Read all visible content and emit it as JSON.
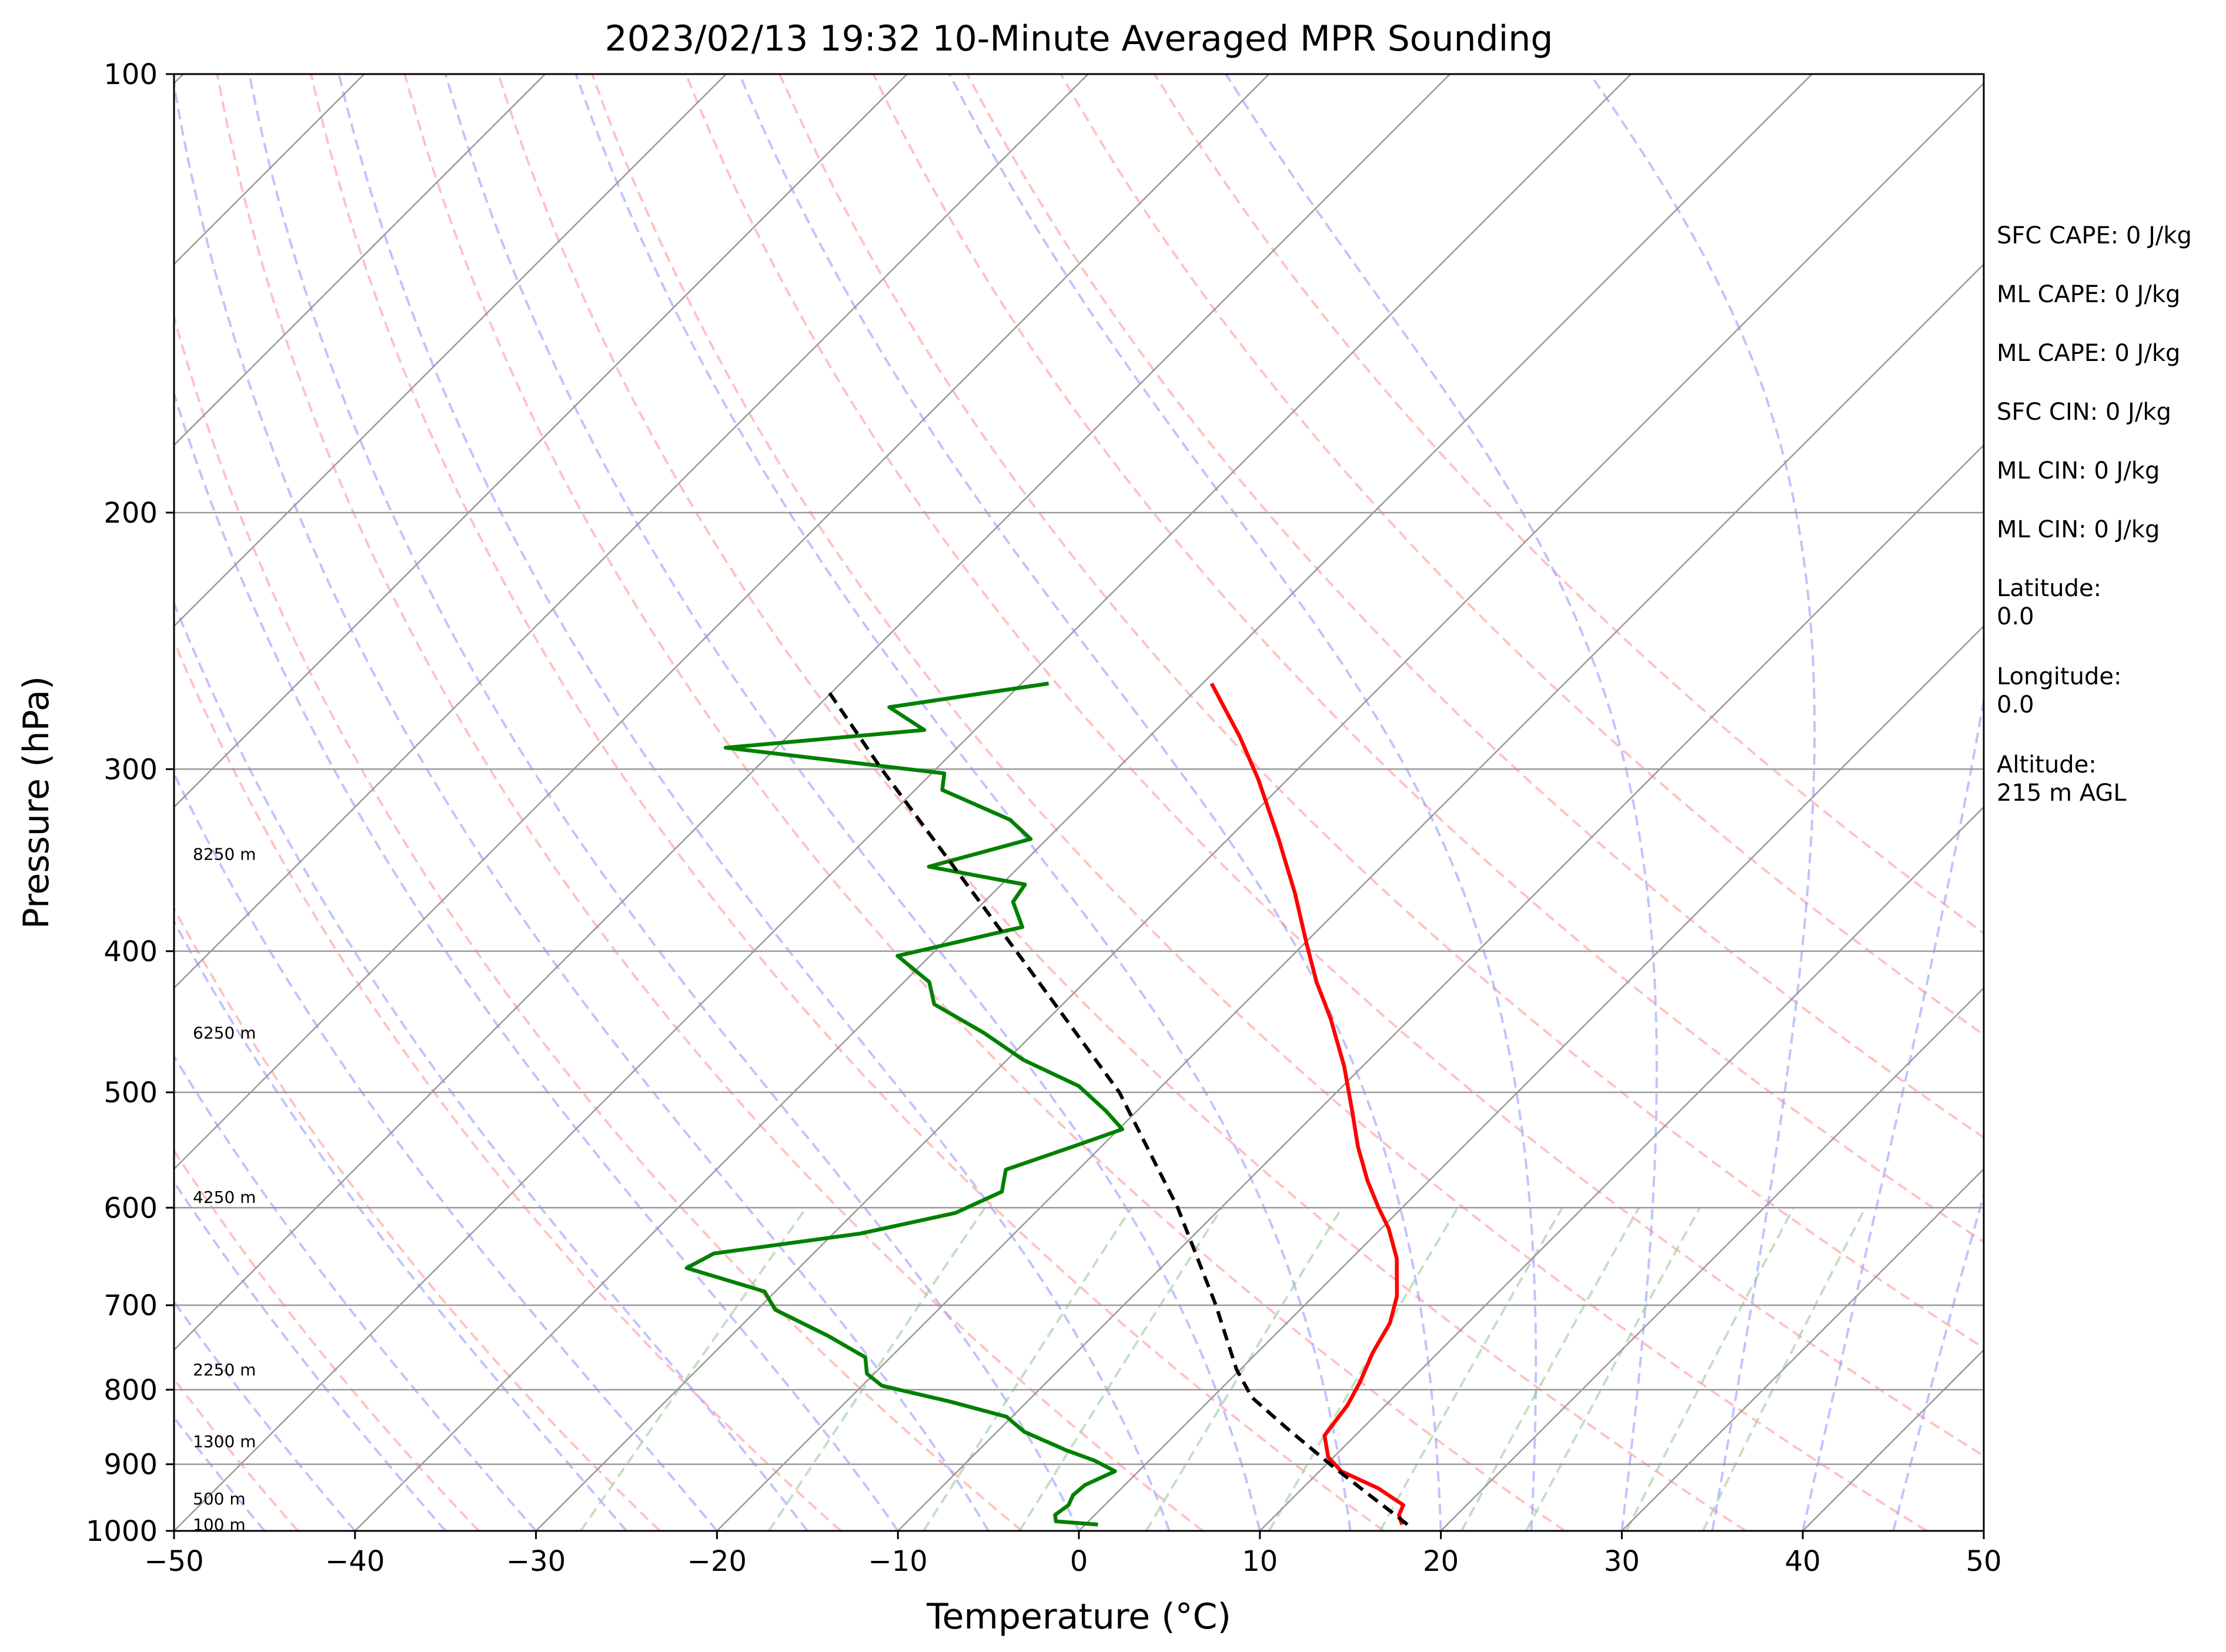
{
  "chart_data": {
    "type": "skew-t",
    "title": "2023/02/13 19:32 10-Minute Averaged MPR Sounding",
    "xlabel": "Temperature (°C)",
    "ylabel": "Pressure (hPa)",
    "xlim": [
      -50,
      50
    ],
    "ylim": [
      1000,
      100
    ],
    "y_scale": "log",
    "skew": "45°",
    "grid": true,
    "x_ticks": [
      -50,
      -40,
      -30,
      -20,
      -10,
      0,
      10,
      20,
      30,
      40,
      50
    ],
    "x_tick_labels": [
      "−50",
      "−40",
      "−30",
      "−20",
      "−10",
      "0",
      "10",
      "20",
      "30",
      "40",
      "50"
    ],
    "y_ticks": [
      1000,
      900,
      800,
      700,
      600,
      500,
      400,
      300,
      200,
      100
    ],
    "y_tick_labels": [
      "1000",
      "900",
      "800",
      "700",
      "600",
      "500",
      "400",
      "300",
      "200",
      "100"
    ],
    "height_labels": [
      {
        "text": "100 m",
        "pressure": 990
      },
      {
        "text": "500 m",
        "pressure": 950
      },
      {
        "text": "1300 m",
        "pressure": 868
      },
      {
        "text": "2250 m",
        "pressure": 775
      },
      {
        "text": "4250 m",
        "pressure": 590
      },
      {
        "text": "6250 m",
        "pressure": 455
      },
      {
        "text": "8250 m",
        "pressure": 343
      }
    ],
    "side_text": [
      "SFC CAPE: 0 J/kg",
      "ML CAPE: 0 J/kg",
      "ML CAPE: 0 J/kg",
      "SFC CIN: 0 J/kg",
      "ML CIN: 0 J/kg",
      "ML CIN: 0 J/kg",
      "Latitude:\n0.0",
      "Longitude:\n0.0",
      "Altitude:\n215 m AGL"
    ],
    "series": [
      {
        "role": "temperature",
        "color": "#ff0000",
        "points": [
          {
            "p": 990,
            "t": 17.5
          },
          {
            "p": 975,
            "t": 16.8
          },
          {
            "p": 960,
            "t": 16.5
          },
          {
            "p": 935,
            "t": 14.2
          },
          {
            "p": 910,
            "t": 11.2
          },
          {
            "p": 890,
            "t": 9.7
          },
          {
            "p": 860,
            "t": 8.3
          },
          {
            "p": 820,
            "t": 7.9
          },
          {
            "p": 790,
            "t": 7.3
          },
          {
            "p": 755,
            "t": 6.4
          },
          {
            "p": 720,
            "t": 5.7
          },
          {
            "p": 690,
            "t": 4.6
          },
          {
            "p": 650,
            "t": 2.5
          },
          {
            "p": 620,
            "t": 0.4
          },
          {
            "p": 600,
            "t": -1.3
          },
          {
            "p": 575,
            "t": -3.4
          },
          {
            "p": 545,
            "t": -5.8
          },
          {
            "p": 515,
            "t": -8.1
          },
          {
            "p": 480,
            "t": -11.0
          },
          {
            "p": 445,
            "t": -14.4
          },
          {
            "p": 420,
            "t": -17.2
          },
          {
            "p": 395,
            "t": -19.9
          },
          {
            "p": 365,
            "t": -23.3
          },
          {
            "p": 335,
            "t": -27.2
          },
          {
            "p": 305,
            "t": -31.6
          },
          {
            "p": 285,
            "t": -35.0
          },
          {
            "p": 262,
            "t": -39.5
          }
        ]
      },
      {
        "role": "dewpoint",
        "color": "#008000",
        "points": [
          {
            "p": 990,
            "t": 0.7
          },
          {
            "p": 985,
            "t": -1.8
          },
          {
            "p": 975,
            "t": -2.2
          },
          {
            "p": 960,
            "t": -2.0
          },
          {
            "p": 945,
            "t": -2.3
          },
          {
            "p": 930,
            "t": -2.2
          },
          {
            "p": 910,
            "t": -1.3
          },
          {
            "p": 895,
            "t": -3.0
          },
          {
            "p": 880,
            "t": -5.2
          },
          {
            "p": 855,
            "t": -8.5
          },
          {
            "p": 835,
            "t": -10.3
          },
          {
            "p": 815,
            "t": -14.3
          },
          {
            "p": 795,
            "t": -18.9
          },
          {
            "p": 780,
            "t": -20.4
          },
          {
            "p": 760,
            "t": -21.4
          },
          {
            "p": 735,
            "t": -24.6
          },
          {
            "p": 705,
            "t": -29.0
          },
          {
            "p": 685,
            "t": -30.6
          },
          {
            "p": 660,
            "t": -36.2
          },
          {
            "p": 645,
            "t": -35.5
          },
          {
            "p": 625,
            "t": -28.5
          },
          {
            "p": 605,
            "t": -24.4
          },
          {
            "p": 585,
            "t": -23.0
          },
          {
            "p": 565,
            "t": -24.0
          },
          {
            "p": 545,
            "t": -21.6
          },
          {
            "p": 530,
            "t": -19.8
          },
          {
            "p": 515,
            "t": -21.7
          },
          {
            "p": 495,
            "t": -24.6
          },
          {
            "p": 475,
            "t": -29.1
          },
          {
            "p": 455,
            "t": -32.8
          },
          {
            "p": 435,
            "t": -37.1
          },
          {
            "p": 420,
            "t": -38.6
          },
          {
            "p": 403,
            "t": -41.8
          },
          {
            "p": 385,
            "t": -36.5
          },
          {
            "p": 370,
            "t": -38.4
          },
          {
            "p": 360,
            "t": -38.7
          },
          {
            "p": 350,
            "t": -45.0
          },
          {
            "p": 335,
            "t": -40.9
          },
          {
            "p": 325,
            "t": -43.1
          },
          {
            "p": 310,
            "t": -48.5
          },
          {
            "p": 302,
            "t": -49.3
          },
          {
            "p": 290,
            "t": -62.8
          },
          {
            "p": 282,
            "t": -52.8
          },
          {
            "p": 272,
            "t": -56.0
          },
          {
            "p": 262,
            "t": -48.5
          }
        ]
      },
      {
        "role": "parcel",
        "color": "#000000",
        "linestyle": "dashed",
        "points": [
          {
            "p": 990,
            "t": 17.8
          },
          {
            "p": 975,
            "t": 16.6
          },
          {
            "p": 950,
            "t": 14.5
          },
          {
            "p": 900,
            "t": 10.2
          },
          {
            "p": 850,
            "t": 5.8
          },
          {
            "p": 810,
            "t": 2.2
          },
          {
            "p": 775,
            "t": -0.2
          },
          {
            "p": 700,
            "t": -4.9
          },
          {
            "p": 600,
            "t": -12.4
          },
          {
            "p": 500,
            "t": -22.0
          },
          {
            "p": 400,
            "t": -35.5
          },
          {
            "p": 300,
            "t": -53.0
          },
          {
            "p": 265,
            "t": -60.3
          }
        ]
      }
    ],
    "reference_lines": {
      "isotherms": {
        "color": "#999999",
        "step": 10
      },
      "isobars": {
        "color": "#999999"
      },
      "dry_adiabats": {
        "color": "#ff9999",
        "linestyle": "dashed",
        "thetas_k": [
          230,
          240,
          250,
          260,
          270,
          280,
          290,
          300,
          310,
          320,
          330,
          340,
          350,
          360,
          370,
          380
        ]
      },
      "moist_adiabats": {
        "color": "#9999ff",
        "linestyle": "dashed",
        "start_temps_c": [
          -50,
          -45,
          -40,
          -35,
          -30,
          -25,
          -20,
          -15,
          -10,
          -5,
          0,
          5,
          10,
          15,
          20,
          25,
          30,
          35,
          40,
          45,
          50
        ]
      },
      "mixing_ratios": {
        "color": "#99cc99",
        "linestyle": "dashed",
        "values_gkg": [
          0.4,
          1,
          2,
          3,
          5,
          8,
          12,
          16,
          20,
          28,
          36
        ]
      }
    }
  }
}
